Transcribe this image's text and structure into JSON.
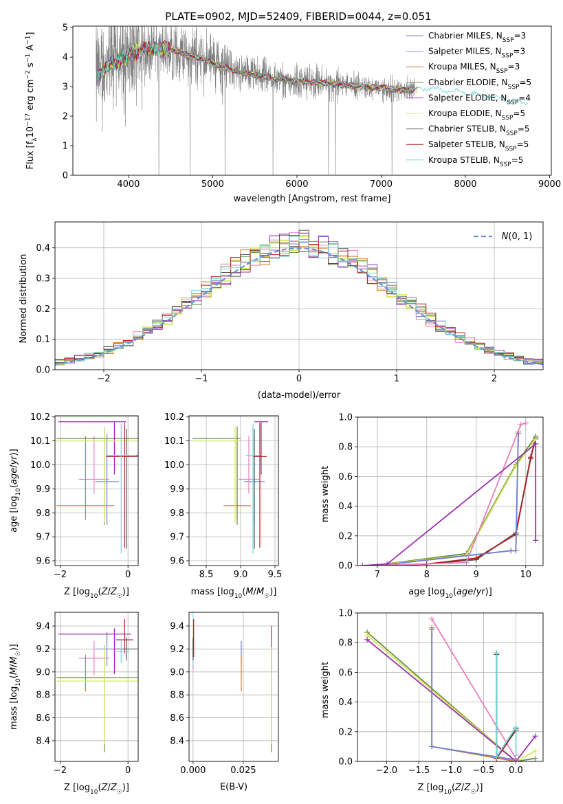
{
  "figure_title": "PLATE=0902, MJD=52409, FIBERID=0044, z=0.051",
  "legend_entries": [
    {
      "label": "Chabrier MILES, N",
      "sub": "SSP",
      "tail": "=3",
      "color": "#6b80d6"
    },
    {
      "label": "Salpeter MILES, N",
      "sub": "SSP",
      "tail": "=3",
      "color": "#e87dbb"
    },
    {
      "label": "Kroupa MILES, N",
      "sub": "SSP",
      "tail": "=3",
      "color": "#d07a2c"
    },
    {
      "label": "Chabrier ELODIE, N",
      "sub": "SSP",
      "tail": "=5",
      "color": "#6b8f3c"
    },
    {
      "label": "Salpeter ELODIE, N",
      "sub": "SSP",
      "tail": "=4",
      "color": "#9b2fae"
    },
    {
      "label": "Kroupa ELODIE, N",
      "sub": "SSP",
      "tail": "=5",
      "color": "#d6e85a"
    },
    {
      "label": "Chabrier STELIB, N",
      "sub": "SSP",
      "tail": "=5",
      "color": "#555555"
    },
    {
      "label": "Salpeter STELIB, N",
      "sub": "SSP",
      "tail": "=5",
      "color": "#b01a1a"
    },
    {
      "label": "Kroupa STELIB, N",
      "sub": "SSP",
      "tail": "=5",
      "color": "#6fd6d8"
    }
  ],
  "chart_data": [
    {
      "id": "spectrum",
      "type": "line",
      "xlabel": "wavelength [Angstrom, rest frame]",
      "ylabel": "Flux [fλ10⁻¹⁷ erg cm⁻² s⁻¹ A⁻¹]",
      "xlim": [
        3340,
        9020
      ],
      "ylim": [
        0,
        5.05
      ],
      "xticks": [
        4000,
        5000,
        6000,
        7000,
        8000,
        9000
      ],
      "yticks": [
        0,
        1,
        2,
        3,
        4,
        5
      ],
      "data_color": "#808080",
      "data_range": [
        3615,
        7400
      ],
      "model_envelope": {
        "x": [
          3615,
          3700,
          3800,
          3900,
          4000,
          4100,
          4200,
          4300,
          4400,
          4500,
          4600,
          4700,
          4800,
          5000,
          5200,
          5400,
          5600,
          5800,
          6000,
          6200,
          6400,
          6600,
          6800,
          7000,
          7200,
          7400,
          7600,
          7800,
          8000,
          8200,
          8400,
          8600,
          8750
        ],
        "y": [
          3.3,
          3.5,
          3.8,
          3.9,
          4.05,
          4.2,
          4.25,
          4.3,
          4.25,
          4.25,
          4.2,
          4.05,
          4.0,
          3.8,
          3.6,
          3.45,
          3.35,
          3.25,
          3.2,
          3.15,
          3.1,
          3.05,
          3.0,
          2.95,
          2.9,
          2.9,
          2.95,
          2.85,
          2.8,
          2.7,
          2.6,
          2.5,
          2.45
        ]
      },
      "x_max_model": 8750,
      "legend_position": "upper right"
    },
    {
      "id": "residuals",
      "type": "step",
      "xlabel": "(data-model)/error",
      "ylabel": "Normed distribution",
      "xlim": [
        -2.5,
        2.5
      ],
      "ylim": [
        0,
        0.485
      ],
      "xticks": [
        -2,
        -1,
        0,
        1,
        2
      ],
      "yticks": [
        0.0,
        0.1,
        0.2,
        0.3,
        0.4
      ],
      "grid": true,
      "bin_width": 0.1,
      "reference_curve": {
        "label": "N(0, 1)",
        "color": "#6a8fd6",
        "style": "dashed"
      },
      "legend_position": "upper right"
    },
    {
      "id": "age-vs-Z",
      "type": "errorbar",
      "xlabel": "Z [log10(Z/Z☉)]",
      "ylabel": "age  [log10(age/yr)]",
      "xlim": [
        -2.15,
        0.3
      ],
      "ylim": [
        9.58,
        10.205
      ],
      "xticks": [
        -2,
        0
      ],
      "yticks": [
        9.6,
        9.7,
        9.8,
        9.9,
        10.0,
        10.1,
        10.2
      ],
      "grid": true,
      "points": [
        {
          "s": "Chabrier MILES",
          "x": -0.62,
          "y": 9.93,
          "xerr": [
            0.35,
            0.35
          ],
          "yerr": [
            0.18,
            0.2
          ]
        },
        {
          "s": "Salpeter MILES",
          "x": -1.0,
          "y": 9.94,
          "xerr": [
            0.45,
            0.45
          ],
          "yerr": [
            0.06,
            0.18
          ]
        },
        {
          "s": "Kroupa MILES",
          "x": -1.25,
          "y": 9.83,
          "xerr": [
            0.85,
            0.85
          ],
          "yerr": [
            0.06,
            0.29
          ]
        },
        {
          "s": "Chabrier ELODIE",
          "x": -0.7,
          "y": 10.11,
          "xerr": [
            1.4,
            1.4
          ],
          "yerr": [
            0.36,
            0.05
          ]
        },
        {
          "s": "Salpeter ELODIE",
          "x": -0.4,
          "y": 10.18,
          "xerr": [
            1.65,
            0.35
          ],
          "yerr": [
            0.22,
            0.0
          ]
        },
        {
          "s": "Kroupa ELODIE",
          "x": -0.7,
          "y": 10.1,
          "xerr": [
            1.4,
            1.4
          ],
          "yerr": [
            0.34,
            0.06
          ]
        },
        {
          "s": "Chabrier STELIB",
          "x": -0.05,
          "y": 10.04,
          "xerr": [
            0.55,
            0.55
          ],
          "yerr": [
            0.39,
            0.11
          ]
        },
        {
          "s": "Salpeter STELIB",
          "x": -0.1,
          "y": 10.035,
          "xerr": [
            0.55,
            0.55
          ],
          "yerr": [
            0.38,
            0.14
          ]
        },
        {
          "s": "Kroupa STELIB",
          "x": -0.2,
          "y": 10.04,
          "xerr": [
            0.45,
            0.45
          ],
          "yerr": [
            0.41,
            0.13
          ]
        }
      ]
    },
    {
      "id": "age-vs-mass",
      "type": "errorbar",
      "xlabel": "mass [log10(M/M☉)]",
      "ylabel": "",
      "xlim": [
        8.25,
        9.55
      ],
      "ylim": [
        9.58,
        10.205
      ],
      "xticks": [
        8.5,
        9.0,
        9.5
      ],
      "yticks": [
        9.6,
        9.7,
        9.8,
        9.9,
        10.0,
        10.1,
        10.2
      ],
      "grid": true,
      "points": [
        {
          "s": "Chabrier MILES",
          "x": 9.2,
          "y": 9.93,
          "xerr": [
            0.15,
            0.15
          ],
          "yerr": [
            0.18,
            0.2
          ]
        },
        {
          "s": "Salpeter MILES",
          "x": 9.12,
          "y": 9.94,
          "xerr": [
            0.15,
            0.15
          ],
          "yerr": [
            0.06,
            0.18
          ]
        },
        {
          "s": "Kroupa MILES",
          "x": 8.95,
          "y": 9.83,
          "xerr": [
            0.2,
            0.2
          ],
          "yerr": [
            0.06,
            0.29
          ]
        },
        {
          "s": "Chabrier ELODIE",
          "x": 8.95,
          "y": 10.11,
          "xerr": [
            0.65,
            0.05
          ],
          "yerr": [
            0.36,
            0.05
          ]
        },
        {
          "s": "Salpeter ELODIE",
          "x": 9.3,
          "y": 10.18,
          "xerr": [
            0.1,
            0.1
          ],
          "yerr": [
            0.22,
            0.0
          ]
        },
        {
          "s": "Kroupa ELODIE",
          "x": 8.92,
          "y": 10.1,
          "xerr": [
            0.6,
            0.05
          ],
          "yerr": [
            0.34,
            0.06
          ]
        },
        {
          "s": "Chabrier STELIB",
          "x": 9.2,
          "y": 10.04,
          "xerr": [
            0.1,
            0.1
          ],
          "yerr": [
            0.39,
            0.11
          ]
        },
        {
          "s": "Salpeter STELIB",
          "x": 9.28,
          "y": 10.035,
          "xerr": [
            0.1,
            0.1
          ],
          "yerr": [
            0.38,
            0.14
          ]
        },
        {
          "s": "Kroupa STELIB",
          "x": 9.18,
          "y": 10.04,
          "xerr": [
            0.1,
            0.1
          ],
          "yerr": [
            0.41,
            0.13
          ]
        }
      ]
    },
    {
      "id": "massweight-vs-age",
      "type": "line",
      "xlabel": "age  [log10(age/yr)]",
      "ylabel": "mass weight",
      "xlim": [
        6.6,
        10.35
      ],
      "ylim": [
        0,
        1.0
      ],
      "xticks": [
        7,
        8,
        9,
        10
      ],
      "yticks": [
        0.0,
        0.2,
        0.4,
        0.6,
        0.8,
        1.0
      ],
      "grid": true,
      "series": [
        {
          "s": "Kroupa STELIB",
          "x": [
            7.0,
            8.0,
            9.0,
            9.8,
            10.1,
            10.2
          ],
          "y": [
            0.0,
            0.01,
            0.04,
            0.22,
            0.73,
            0.87
          ]
        },
        {
          "s": "Chabrier STELIB",
          "x": [
            7.0,
            8.0,
            9.0,
            9.8,
            10.1,
            10.2
          ],
          "y": [
            0.0,
            0.01,
            0.04,
            0.22,
            0.72,
            0.86
          ]
        },
        {
          "s": "Salpeter STELIB",
          "x": [
            7.0,
            8.0,
            9.0,
            9.8,
            10.1,
            10.2
          ],
          "y": [
            0.0,
            0.01,
            0.05,
            0.21,
            0.73,
            0.85
          ]
        },
        {
          "s": "Chabrier ELODIE",
          "x": [
            6.9,
            8.8,
            9.8,
            10.2
          ],
          "y": [
            0.0,
            0.08,
            0.68,
            0.87
          ]
        },
        {
          "s": "Kroupa ELODIE",
          "x": [
            6.9,
            8.8,
            9.8,
            10.2
          ],
          "y": [
            0.0,
            0.07,
            0.67,
            0.85
          ]
        },
        {
          "s": "Kroupa MILES",
          "x": [
            7.0,
            9.7,
            9.8,
            9.85
          ],
          "y": [
            0.0,
            0.1,
            0.1,
            0.9
          ]
        },
        {
          "s": "Chabrier MILES",
          "x": [
            7.0,
            9.7,
            9.8,
            9.85
          ],
          "y": [
            0.0,
            0.1,
            0.1,
            0.89
          ]
        },
        {
          "s": "Salpeter MILES",
          "x": [
            7.0,
            8.8,
            9.9,
            10.0
          ],
          "y": [
            0.0,
            0.02,
            0.95,
            0.96
          ]
        },
        {
          "s": "Salpeter ELODIE",
          "x": [
            6.7,
            7.2,
            10.2,
            10.2
          ],
          "y": [
            0.0,
            0.01,
            0.82,
            0.17
          ]
        }
      ]
    },
    {
      "id": "mass-vs-Z",
      "type": "errorbar",
      "xlabel": "Z [log10(Z/Z☉)]",
      "ylabel": "mass [log10(M/M☉)]",
      "xlim": [
        -2.15,
        0.3
      ],
      "ylim": [
        8.22,
        9.52
      ],
      "xticks": [
        -2,
        0
      ],
      "yticks": [
        8.4,
        8.6,
        8.8,
        9.0,
        9.2,
        9.4
      ],
      "grid": true,
      "points": [
        {
          "s": "Chabrier MILES",
          "x": -0.62,
          "y": 9.2,
          "xerr": [
            0.35,
            0.35
          ],
          "yerr": [
            0.15,
            0.15
          ]
        },
        {
          "s": "Salpeter MILES",
          "x": -1.0,
          "y": 9.12,
          "xerr": [
            0.45,
            0.45
          ],
          "yerr": [
            0.15,
            0.15
          ]
        },
        {
          "s": "Kroupa MILES",
          "x": -1.25,
          "y": 8.95,
          "xerr": [
            0.85,
            0.85
          ],
          "yerr": [
            0.12,
            0.2
          ]
        },
        {
          "s": "Chabrier ELODIE",
          "x": -0.7,
          "y": 8.95,
          "xerr": [
            1.4,
            1.4
          ],
          "yerr": [
            0.65,
            0.28
          ]
        },
        {
          "s": "Salpeter ELODIE",
          "x": -0.4,
          "y": 9.33,
          "xerr": [
            1.65,
            0.5
          ],
          "yerr": [
            0.35,
            0.05
          ]
        },
        {
          "s": "Kroupa ELODIE",
          "x": -0.7,
          "y": 8.92,
          "xerr": [
            1.4,
            1.4
          ],
          "yerr": [
            0.55,
            0.3
          ]
        },
        {
          "s": "Chabrier STELIB",
          "x": -0.05,
          "y": 9.2,
          "xerr": [
            0.35,
            0.35
          ],
          "yerr": [
            0.1,
            0.1
          ]
        },
        {
          "s": "Salpeter STELIB",
          "x": -0.1,
          "y": 9.28,
          "xerr": [
            0.25,
            0.25
          ],
          "yerr": [
            0.12,
            0.18
          ]
        },
        {
          "s": "Kroupa STELIB",
          "x": -0.2,
          "y": 9.18,
          "xerr": [
            0.25,
            0.25
          ],
          "yerr": [
            0.1,
            0.1
          ]
        }
      ]
    },
    {
      "id": "mass-vs-EBV",
      "type": "errorbar",
      "xlabel": "E(B-V)",
      "ylabel": "",
      "xlim": [
        -0.002,
        0.0425
      ],
      "ylim": [
        8.22,
        9.52
      ],
      "xticks": [
        0.0,
        0.025
      ],
      "xticklabels": [
        "0.000",
        "0.025"
      ],
      "yticks": [
        8.4,
        8.6,
        8.8,
        9.0,
        9.2,
        9.4
      ],
      "grid": true,
      "points": [
        {
          "s": "Chabrier MILES",
          "x": 0.024,
          "y": 9.2,
          "xerr": [
            0,
            0
          ],
          "yerr": [
            0.15,
            0.07
          ]
        },
        {
          "s": "Kroupa MILES",
          "x": 0.024,
          "y": 8.95,
          "xerr": [
            0,
            0
          ],
          "yerr": [
            0.12,
            0.2
          ]
        },
        {
          "s": "Chabrier ELODIE",
          "x": 0.039,
          "y": 8.95,
          "xerr": [
            0,
            0
          ],
          "yerr": [
            0.65,
            0.28
          ]
        },
        {
          "s": "Salpeter ELODIE",
          "x": 0.039,
          "y": 9.33,
          "xerr": [
            0,
            0
          ],
          "yerr": [
            0.35,
            0.07
          ]
        },
        {
          "s": "Kroupa ELODIE",
          "x": 0.039,
          "y": 8.92,
          "xerr": [
            0,
            0
          ],
          "yerr": [
            0.55,
            0.3
          ]
        },
        {
          "s": "Salpeter STELIB",
          "x": 0.0003,
          "y": 9.28,
          "xerr": [
            0,
            0
          ],
          "yerr": [
            0.15,
            0.18
          ]
        },
        {
          "s": "Salpeter MILES",
          "x": 0.0,
          "y": 9.12,
          "xerr": [
            0,
            0
          ],
          "yerr": [
            0.1,
            0.15
          ]
        },
        {
          "s": "Kroupa STELIB",
          "x": 0.0,
          "y": 9.18,
          "xerr": [
            0,
            0
          ],
          "yerr": [
            0.12,
            0.1
          ]
        },
        {
          "s": "Chabrier STELIB",
          "x": 0.0,
          "y": 9.2,
          "xerr": [
            0,
            0
          ],
          "yerr": [
            0.1,
            0.1
          ]
        }
      ]
    },
    {
      "id": "massweight-vs-Z",
      "type": "line",
      "xlabel": "Z [log10(Z/Z☉)]",
      "ylabel": "mass weight",
      "xlim": [
        -2.45,
        0.42
      ],
      "ylim": [
        0,
        1.0
      ],
      "xticks": [
        -2.0,
        -1.5,
        -1.0,
        -0.5,
        0.0
      ],
      "xticklabels": [
        "−2.0",
        "−1.5",
        "−1.0",
        "−0.5",
        "0.0"
      ],
      "yticks": [
        0.0,
        0.2,
        0.4,
        0.6,
        0.8,
        1.0
      ],
      "grid": true,
      "series": [
        {
          "s": "Chabrier ELODIE",
          "x": [
            -2.3,
            0.0,
            0.3
          ],
          "y": [
            0.87,
            0.0,
            0.02
          ]
        },
        {
          "s": "Kroupa ELODIE",
          "x": [
            -2.3,
            0.0,
            0.3
          ],
          "y": [
            0.85,
            0.0,
            0.07
          ]
        },
        {
          "s": "Salpeter ELODIE",
          "x": [
            -2.3,
            0.0,
            0.3
          ],
          "y": [
            0.82,
            0.0,
            0.17
          ]
        },
        {
          "s": "Kroupa MILES",
          "x": [
            -1.3,
            -1.3,
            0.0
          ],
          "y": [
            0.9,
            0.1,
            0.0
          ]
        },
        {
          "s": "Chabrier MILES",
          "x": [
            -1.3,
            -1.3,
            0.0
          ],
          "y": [
            0.89,
            0.1,
            0.01
          ]
        },
        {
          "s": "Salpeter MILES",
          "x": [
            -1.3,
            0.0
          ],
          "y": [
            0.96,
            0.02
          ]
        },
        {
          "s": "Salpeter STELIB",
          "x": [
            -0.3,
            -0.3,
            0.0
          ],
          "y": [
            0.73,
            0.02,
            0.21
          ]
        },
        {
          "s": "Chabrier STELIB",
          "x": [
            -0.3,
            -0.3,
            0.0
          ],
          "y": [
            0.72,
            0.03,
            0.22
          ]
        },
        {
          "s": "Kroupa STELIB",
          "x": [
            -0.3,
            -0.3,
            0.0,
            0.0
          ],
          "y": [
            0.73,
            0.03,
            0.23,
            0.04
          ]
        }
      ]
    }
  ]
}
